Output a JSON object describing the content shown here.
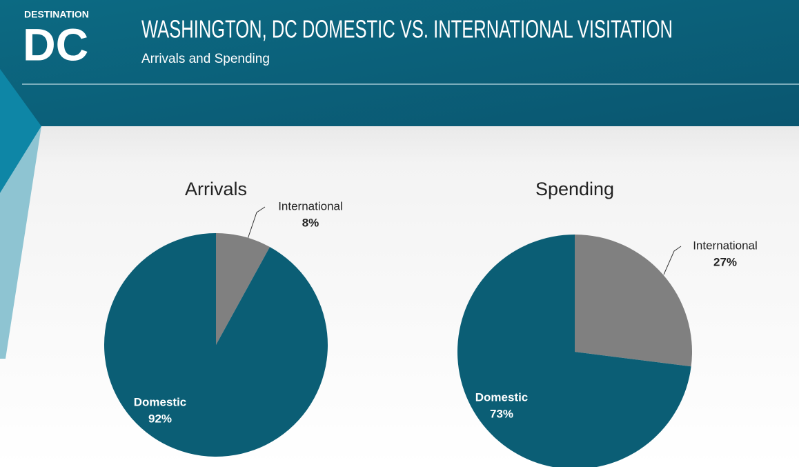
{
  "header": {
    "logo_small": "DESTINATION",
    "logo": "DC",
    "title": "WASHINGTON, DC DOMESTIC VS. INTERNATIONAL VISITATION",
    "subtitle": "Arrivals and Spending"
  },
  "chart_data": [
    {
      "type": "pie",
      "title": "Arrivals",
      "categories": [
        "International",
        "Domestic"
      ],
      "values": [
        8,
        92
      ],
      "value_labels": [
        "8%",
        "92%"
      ],
      "colors": [
        "#808080",
        "#0b5e75"
      ]
    },
    {
      "type": "pie",
      "title": "Spending",
      "categories": [
        "International",
        "Domestic"
      ],
      "values": [
        27,
        73
      ],
      "value_labels": [
        "27%",
        "73%"
      ],
      "colors": [
        "#808080",
        "#0b5e75"
      ]
    }
  ]
}
